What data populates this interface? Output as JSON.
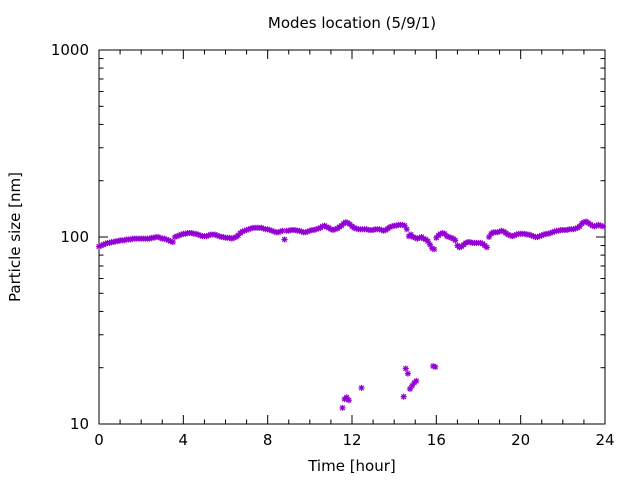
{
  "chart_data": {
    "type": "scatter",
    "title": "Modes location (5/9/1)",
    "xlabel": "Time [hour]",
    "ylabel": "Particle size [nm]",
    "xlim": [
      0,
      24
    ],
    "ylim": [
      10,
      1000
    ],
    "y_scale": "log",
    "x_ticks": [
      "0",
      "4",
      "8",
      "12",
      "16",
      "20",
      "24"
    ],
    "y_ticks": [
      "10",
      "100",
      "1000"
    ],
    "grid": false,
    "marker_color": "#9400d3",
    "series": [
      {
        "values": [
          [
            0.0,
            89
          ],
          [
            0.1,
            90
          ],
          [
            0.2,
            91
          ],
          [
            0.3,
            92
          ],
          [
            0.4,
            93
          ],
          [
            0.5,
            93
          ],
          [
            0.6,
            94
          ],
          [
            0.7,
            94
          ],
          [
            0.8,
            95
          ],
          [
            0.9,
            95
          ],
          [
            1.0,
            96
          ],
          [
            1.1,
            96
          ],
          [
            1.2,
            96
          ],
          [
            1.3,
            97
          ],
          [
            1.4,
            97
          ],
          [
            1.5,
            97
          ],
          [
            1.6,
            98
          ],
          [
            1.7,
            98
          ],
          [
            1.8,
            98
          ],
          [
            1.9,
            98
          ],
          [
            2.0,
            98
          ],
          [
            2.1,
            98
          ],
          [
            2.2,
            98
          ],
          [
            2.3,
            98
          ],
          [
            2.4,
            98
          ],
          [
            2.5,
            99
          ],
          [
            2.6,
            99
          ],
          [
            2.7,
            100
          ],
          [
            2.8,
            100
          ],
          [
            2.9,
            99
          ],
          [
            3.0,
            98
          ],
          [
            3.1,
            98
          ],
          [
            3.2,
            97
          ],
          [
            3.3,
            96
          ],
          [
            3.4,
            95
          ],
          [
            3.5,
            94
          ],
          [
            3.6,
            100
          ],
          [
            3.7,
            101
          ],
          [
            3.8,
            102
          ],
          [
            3.9,
            103
          ],
          [
            4.0,
            104
          ],
          [
            4.1,
            104
          ],
          [
            4.2,
            105
          ],
          [
            4.3,
            105
          ],
          [
            4.4,
            105
          ],
          [
            4.5,
            104
          ],
          [
            4.6,
            104
          ],
          [
            4.7,
            103
          ],
          [
            4.8,
            102
          ],
          [
            4.9,
            101
          ],
          [
            5.0,
            101
          ],
          [
            5.1,
            101
          ],
          [
            5.2,
            102
          ],
          [
            5.3,
            103
          ],
          [
            5.4,
            103
          ],
          [
            5.5,
            103
          ],
          [
            5.6,
            102
          ],
          [
            5.7,
            101
          ],
          [
            5.8,
            100
          ],
          [
            5.9,
            100
          ],
          [
            6.0,
            99
          ],
          [
            6.1,
            99
          ],
          [
            6.2,
            99
          ],
          [
            6.3,
            98
          ],
          [
            6.4,
            99
          ],
          [
            6.5,
            100
          ],
          [
            6.6,
            102
          ],
          [
            6.7,
            105
          ],
          [
            6.8,
            107
          ],
          [
            6.9,
            108
          ],
          [
            7.0,
            109
          ],
          [
            7.1,
            110
          ],
          [
            7.2,
            111
          ],
          [
            7.3,
            112
          ],
          [
            7.4,
            112
          ],
          [
            7.5,
            112
          ],
          [
            7.6,
            112
          ],
          [
            7.7,
            112
          ],
          [
            7.8,
            111
          ],
          [
            7.9,
            110
          ],
          [
            8.0,
            110
          ],
          [
            8.1,
            109
          ],
          [
            8.2,
            108
          ],
          [
            8.3,
            107
          ],
          [
            8.4,
            106
          ],
          [
            8.5,
            106
          ],
          [
            8.6,
            107
          ],
          [
            8.7,
            108
          ],
          [
            8.8,
            97
          ],
          [
            8.9,
            108
          ],
          [
            9.0,
            108
          ],
          [
            9.1,
            109
          ],
          [
            9.2,
            109
          ],
          [
            9.3,
            109
          ],
          [
            9.4,
            108
          ],
          [
            9.5,
            108
          ],
          [
            9.6,
            107
          ],
          [
            9.7,
            106
          ],
          [
            9.8,
            106
          ],
          [
            9.9,
            107
          ],
          [
            10.0,
            108
          ],
          [
            10.1,
            109
          ],
          [
            10.2,
            109
          ],
          [
            10.3,
            110
          ],
          [
            10.4,
            111
          ],
          [
            10.5,
            112
          ],
          [
            10.6,
            114
          ],
          [
            10.7,
            115
          ],
          [
            10.8,
            113
          ],
          [
            10.9,
            112
          ],
          [
            11.0,
            110
          ],
          [
            11.1,
            109
          ],
          [
            11.2,
            110
          ],
          [
            11.3,
            111
          ],
          [
            11.4,
            113
          ],
          [
            11.5,
            115
          ],
          [
            11.6,
            118
          ],
          [
            11.7,
            120
          ],
          [
            11.8,
            119
          ],
          [
            11.9,
            117
          ],
          [
            12.0,
            114
          ],
          [
            12.1,
            112
          ],
          [
            12.2,
            111
          ],
          [
            12.3,
            110
          ],
          [
            12.4,
            110
          ],
          [
            12.5,
            110
          ],
          [
            12.6,
            110
          ],
          [
            12.7,
            110
          ],
          [
            12.8,
            109
          ],
          [
            12.9,
            109
          ],
          [
            13.0,
            109
          ],
          [
            13.1,
            110
          ],
          [
            13.2,
            110
          ],
          [
            13.3,
            110
          ],
          [
            13.4,
            109
          ],
          [
            13.5,
            108
          ],
          [
            13.6,
            109
          ],
          [
            13.7,
            111
          ],
          [
            13.8,
            113
          ],
          [
            13.9,
            114
          ],
          [
            14.0,
            115
          ],
          [
            14.1,
            115
          ],
          [
            14.2,
            116
          ],
          [
            14.3,
            116
          ],
          [
            14.4,
            116
          ],
          [
            14.5,
            115
          ],
          [
            14.6,
            110
          ],
          [
            14.7,
            101
          ],
          [
            14.8,
            103
          ],
          [
            14.9,
            100
          ],
          [
            15.0,
            99
          ],
          [
            15.1,
            98
          ],
          [
            15.2,
            99
          ],
          [
            15.3,
            100
          ],
          [
            15.4,
            98
          ],
          [
            15.5,
            97
          ],
          [
            15.6,
            95
          ],
          [
            15.7,
            91
          ],
          [
            15.8,
            87
          ],
          [
            15.9,
            86
          ],
          [
            16.0,
            99
          ],
          [
            16.1,
            102
          ],
          [
            16.2,
            104
          ],
          [
            16.3,
            105
          ],
          [
            16.4,
            104
          ],
          [
            16.5,
            101
          ],
          [
            16.6,
            100
          ],
          [
            16.7,
            99
          ],
          [
            16.8,
            98
          ],
          [
            16.9,
            96
          ],
          [
            17.0,
            90
          ],
          [
            17.1,
            88
          ],
          [
            17.2,
            89
          ],
          [
            17.3,
            91
          ],
          [
            17.4,
            93
          ],
          [
            17.5,
            94
          ],
          [
            17.6,
            94
          ],
          [
            17.7,
            93
          ],
          [
            17.8,
            93
          ],
          [
            17.9,
            93
          ],
          [
            18.0,
            93
          ],
          [
            18.1,
            93
          ],
          [
            18.2,
            92
          ],
          [
            18.3,
            90
          ],
          [
            18.4,
            88
          ],
          [
            18.5,
            100
          ],
          [
            18.6,
            104
          ],
          [
            18.7,
            106
          ],
          [
            18.8,
            106
          ],
          [
            18.9,
            106
          ],
          [
            19.0,
            107
          ],
          [
            19.1,
            108
          ],
          [
            19.2,
            107
          ],
          [
            19.3,
            105
          ],
          [
            19.4,
            103
          ],
          [
            19.5,
            102
          ],
          [
            19.6,
            101
          ],
          [
            19.7,
            102
          ],
          [
            19.8,
            103
          ],
          [
            19.9,
            104
          ],
          [
            20.0,
            104
          ],
          [
            20.1,
            104
          ],
          [
            20.2,
            104
          ],
          [
            20.3,
            103
          ],
          [
            20.4,
            103
          ],
          [
            20.5,
            102
          ],
          [
            20.6,
            101
          ],
          [
            20.7,
            100
          ],
          [
            20.8,
            100
          ],
          [
            20.9,
            101
          ],
          [
            21.0,
            102
          ],
          [
            21.1,
            103
          ],
          [
            21.2,
            104
          ],
          [
            21.3,
            104
          ],
          [
            21.4,
            105
          ],
          [
            21.5,
            106
          ],
          [
            21.6,
            107
          ],
          [
            21.7,
            108
          ],
          [
            21.8,
            108
          ],
          [
            21.9,
            109
          ],
          [
            22.0,
            109
          ],
          [
            22.1,
            109
          ],
          [
            22.2,
            109
          ],
          [
            22.3,
            110
          ],
          [
            22.4,
            110
          ],
          [
            22.5,
            110
          ],
          [
            22.6,
            111
          ],
          [
            22.7,
            112
          ],
          [
            22.8,
            114
          ],
          [
            22.9,
            118
          ],
          [
            23.0,
            120
          ],
          [
            23.1,
            121
          ],
          [
            23.2,
            119
          ],
          [
            23.3,
            117
          ],
          [
            23.4,
            115
          ],
          [
            23.5,
            114
          ],
          [
            23.6,
            115
          ],
          [
            23.7,
            116
          ],
          [
            23.8,
            115
          ],
          [
            23.9,
            114
          ],
          [
            11.55,
            12.2
          ],
          [
            11.65,
            13.6
          ],
          [
            11.75,
            13.9
          ],
          [
            11.85,
            13.4
          ],
          [
            12.45,
            15.6
          ],
          [
            14.45,
            14.0
          ],
          [
            14.55,
            19.8
          ],
          [
            14.65,
            18.6
          ],
          [
            14.75,
            15.4
          ],
          [
            14.85,
            16.0
          ],
          [
            14.95,
            16.6
          ],
          [
            15.05,
            17.0
          ],
          [
            15.85,
            20.4
          ],
          [
            15.95,
            20.2
          ]
        ]
      }
    ]
  }
}
